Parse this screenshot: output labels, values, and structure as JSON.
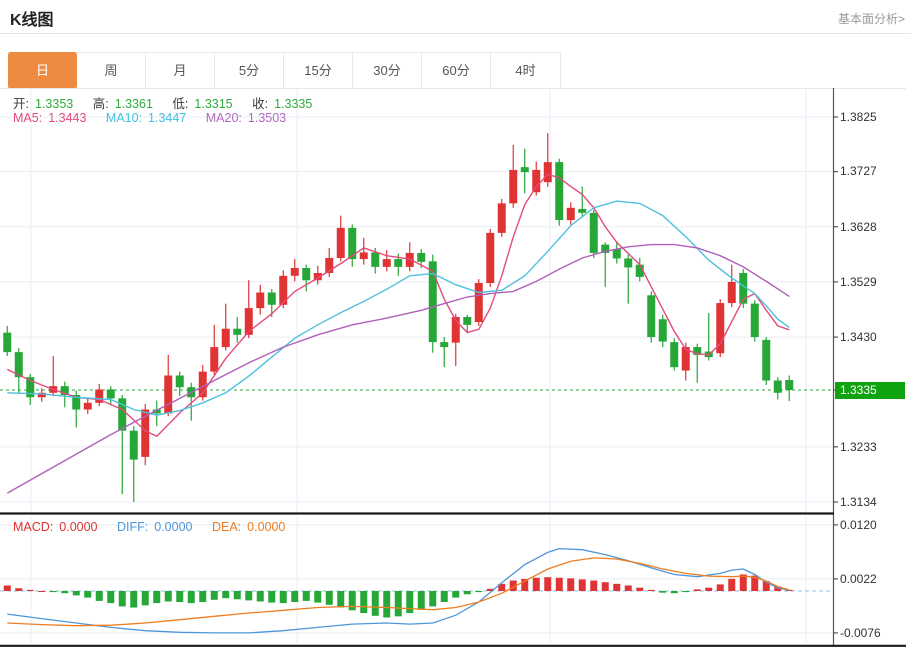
{
  "header": {
    "title": "K线图",
    "link": "基本面分析>"
  },
  "tabs": {
    "items": [
      {
        "label": "日",
        "active": true
      },
      {
        "label": "周",
        "active": false
      },
      {
        "label": "月",
        "active": false
      },
      {
        "label": "5分",
        "active": false
      },
      {
        "label": "15分",
        "active": false
      },
      {
        "label": "30分",
        "active": false
      },
      {
        "label": "60分",
        "active": false
      },
      {
        "label": "4时",
        "active": false
      }
    ]
  },
  "ohlc": {
    "items": [
      {
        "label": "开:",
        "value": "1.3353"
      },
      {
        "label": "高:",
        "value": "1.3361"
      },
      {
        "label": "低:",
        "value": "1.3315"
      },
      {
        "label": "收:",
        "value": "1.3335"
      }
    ]
  },
  "ma_legend": {
    "items": [
      {
        "label": "MA5:",
        "value": "1.3443"
      },
      {
        "label": "MA10:",
        "value": "1.3447"
      },
      {
        "label": "MA20:",
        "value": "1.3503"
      }
    ]
  },
  "macd_legend": {
    "items": [
      {
        "label": "MACD:",
        "value": "0.0000"
      },
      {
        "label": "DIFF:",
        "value": "0.0000"
      },
      {
        "label": "DEA:",
        "value": "0.0000"
      }
    ]
  },
  "price_tag": {
    "value": "1.3335"
  },
  "colors": {
    "up": "#e03333",
    "down": "#26a737",
    "ma5": "#e34b7c",
    "ma10": "#4fc0e0",
    "ma20": "#b060b8",
    "diff": "#4e97da",
    "dea": "#ef7d21",
    "tab_active": "#ef8b41",
    "price_tag": "#10a310",
    "grid": "#e7eef5",
    "axis": "#555",
    "current_line": "#2eaa3e",
    "zero_line": "#8fc1ea"
  },
  "chart_data": {
    "type": "candlestick+macd",
    "main": {
      "y_axis_labels": [
        "1.3825",
        "1.3727",
        "1.3628",
        "1.3529",
        "1.3430",
        "1.3233",
        "1.3134"
      ],
      "y_axis_values": [
        1.3825,
        1.3727,
        1.3628,
        1.3529,
        1.343,
        1.3233,
        1.3134
      ],
      "ylim": [
        1.311,
        1.388
      ],
      "current_price": 1.3335,
      "candles_ohlc": [
        [
          1.3438,
          1.345,
          1.3396,
          1.3403
        ],
        [
          1.3403,
          1.341,
          1.333,
          1.3358
        ],
        [
          1.3358,
          1.3364,
          1.3308,
          1.3322
        ],
        [
          1.3322,
          1.3338,
          1.3314,
          1.333
        ],
        [
          1.333,
          1.3396,
          1.3324,
          1.3342
        ],
        [
          1.3342,
          1.335,
          1.3304,
          1.3326
        ],
        [
          1.3326,
          1.3334,
          1.3268,
          1.33
        ],
        [
          1.33,
          1.332,
          1.3292,
          1.3312
        ],
        [
          1.3312,
          1.3346,
          1.3306,
          1.3336
        ],
        [
          1.3336,
          1.3342,
          1.3308,
          1.332
        ],
        [
          1.332,
          1.3326,
          1.3148,
          1.3262
        ],
        [
          1.3262,
          1.327,
          1.3134,
          1.321
        ],
        [
          1.3215,
          1.331,
          1.32,
          1.33
        ],
        [
          1.33,
          1.3316,
          1.327,
          1.3293
        ],
        [
          1.3293,
          1.3398,
          1.3288,
          1.3361
        ],
        [
          1.3361,
          1.3368,
          1.3324,
          1.334
        ],
        [
          1.334,
          1.3348,
          1.328,
          1.3322
        ],
        [
          1.3322,
          1.338,
          1.3316,
          1.3368
        ],
        [
          1.3368,
          1.3452,
          1.3362,
          1.3412
        ],
        [
          1.3412,
          1.349,
          1.3406,
          1.3445
        ],
        [
          1.3445,
          1.3466,
          1.342,
          1.3434
        ],
        [
          1.3434,
          1.3532,
          1.3428,
          1.3482
        ],
        [
          1.3482,
          1.3524,
          1.347,
          1.351
        ],
        [
          1.351,
          1.3516,
          1.3466,
          1.3488
        ],
        [
          1.3488,
          1.355,
          1.3482,
          1.354
        ],
        [
          1.354,
          1.357,
          1.353,
          1.3554
        ],
        [
          1.3554,
          1.356,
          1.3512,
          1.3532
        ],
        [
          1.3532,
          1.3558,
          1.3524,
          1.3545
        ],
        [
          1.3545,
          1.359,
          1.3538,
          1.3572
        ],
        [
          1.3572,
          1.3648,
          1.3566,
          1.3626
        ],
        [
          1.3626,
          1.3632,
          1.3556,
          1.357
        ],
        [
          1.357,
          1.3608,
          1.356,
          1.3582
        ],
        [
          1.3582,
          1.359,
          1.3544,
          1.3556
        ],
        [
          1.3556,
          1.3586,
          1.3548,
          1.357
        ],
        [
          1.357,
          1.358,
          1.354,
          1.3556
        ],
        [
          1.3556,
          1.36,
          1.3548,
          1.3581
        ],
        [
          1.3581,
          1.3588,
          1.3554,
          1.3565
        ],
        [
          1.3566,
          1.3578,
          1.3402,
          1.3421
        ],
        [
          1.3421,
          1.343,
          1.3376,
          1.3412
        ],
        [
          1.342,
          1.3472,
          1.3378,
          1.3466
        ],
        [
          1.3466,
          1.347,
          1.3438,
          1.3452
        ],
        [
          1.3457,
          1.3534,
          1.345,
          1.3527
        ],
        [
          1.3527,
          1.3624,
          1.352,
          1.3617
        ],
        [
          1.3617,
          1.3678,
          1.361,
          1.367
        ],
        [
          1.367,
          1.3775,
          1.3662,
          1.373
        ],
        [
          1.3735,
          1.3768,
          1.3688,
          1.3726
        ],
        [
          1.369,
          1.3745,
          1.3684,
          1.373
        ],
        [
          1.3708,
          1.3796,
          1.37,
          1.3744
        ],
        [
          1.3744,
          1.375,
          1.363,
          1.364
        ],
        [
          1.364,
          1.3672,
          1.3632,
          1.3662
        ],
        [
          1.366,
          1.37,
          1.3645,
          1.3653
        ],
        [
          1.3653,
          1.3658,
          1.3572,
          1.3581
        ],
        [
          1.3596,
          1.36,
          1.352,
          1.3581
        ],
        [
          1.3588,
          1.3602,
          1.3562,
          1.3571
        ],
        [
          1.3571,
          1.3578,
          1.349,
          1.3555
        ],
        [
          1.356,
          1.3572,
          1.353,
          1.3538
        ],
        [
          1.3505,
          1.3512,
          1.342,
          1.343
        ],
        [
          1.3462,
          1.347,
          1.3412,
          1.3422
        ],
        [
          1.3421,
          1.3428,
          1.337,
          1.3376
        ],
        [
          1.337,
          1.342,
          1.3352,
          1.3412
        ],
        [
          1.3412,
          1.3418,
          1.3348,
          1.3398
        ],
        [
          1.3404,
          1.3473,
          1.3388,
          1.3394
        ],
        [
          1.3401,
          1.3498,
          1.3394,
          1.3491
        ],
        [
          1.3491,
          1.356,
          1.3484,
          1.3529
        ],
        [
          1.3545,
          1.3552,
          1.3482,
          1.349
        ],
        [
          1.349,
          1.3496,
          1.3422,
          1.343
        ],
        [
          1.3425,
          1.343,
          1.3344,
          1.3352
        ],
        [
          1.3352,
          1.3358,
          1.3318,
          1.333
        ],
        [
          1.3353,
          1.3361,
          1.3315,
          1.3335
        ]
      ],
      "ma5_points": [
        [
          0,
          1.3372
        ],
        [
          2,
          1.3352
        ],
        [
          4,
          1.3336
        ],
        [
          6,
          1.3322
        ],
        [
          8,
          1.3318
        ],
        [
          10,
          1.33
        ],
        [
          12,
          1.3262
        ],
        [
          13,
          1.3252
        ],
        [
          15,
          1.3294
        ],
        [
          17,
          1.333
        ],
        [
          19,
          1.3392
        ],
        [
          21,
          1.344
        ],
        [
          23,
          1.3472
        ],
        [
          25,
          1.3512
        ],
        [
          27,
          1.3536
        ],
        [
          29,
          1.3562
        ],
        [
          31,
          1.359
        ],
        [
          33,
          1.3576
        ],
        [
          35,
          1.357
        ],
        [
          37,
          1.3548
        ],
        [
          38,
          1.3498
        ],
        [
          39,
          1.346
        ],
        [
          40,
          1.3438
        ],
        [
          41,
          1.3444
        ],
        [
          42,
          1.3482
        ],
        [
          43,
          1.354
        ],
        [
          44,
          1.361
        ],
        [
          45,
          1.3668
        ],
        [
          46,
          1.37
        ],
        [
          47,
          1.3722
        ],
        [
          48,
          1.3716
        ],
        [
          49,
          1.37
        ],
        [
          50,
          1.3686
        ],
        [
          51,
          1.3662
        ],
        [
          52,
          1.3628
        ],
        [
          53,
          1.36
        ],
        [
          54,
          1.358
        ],
        [
          55,
          1.356
        ],
        [
          56,
          1.352
        ],
        [
          57,
          1.348
        ],
        [
          58,
          1.344
        ],
        [
          59,
          1.3408
        ],
        [
          60,
          1.34
        ],
        [
          61,
          1.3398
        ],
        [
          62,
          1.3418
        ],
        [
          63,
          1.3458
        ],
        [
          64,
          1.3498
        ],
        [
          65,
          1.3508
        ],
        [
          66,
          1.3478
        ],
        [
          67,
          1.345
        ],
        [
          68,
          1.3443
        ]
      ],
      "ma10_points": [
        [
          0,
          1.333
        ],
        [
          3,
          1.3328
        ],
        [
          6,
          1.3322
        ],
        [
          9,
          1.3318
        ],
        [
          11,
          1.33
        ],
        [
          13,
          1.329
        ],
        [
          15,
          1.3298
        ],
        [
          17,
          1.3312
        ],
        [
          19,
          1.333
        ],
        [
          21,
          1.336
        ],
        [
          23,
          1.3394
        ],
        [
          25,
          1.3428
        ],
        [
          27,
          1.3452
        ],
        [
          29,
          1.3474
        ],
        [
          31,
          1.3494
        ],
        [
          33,
          1.3516
        ],
        [
          35,
          1.354
        ],
        [
          37,
          1.3544
        ],
        [
          39,
          1.3524
        ],
        [
          41,
          1.351
        ],
        [
          43,
          1.3514
        ],
        [
          45,
          1.354
        ],
        [
          47,
          1.3584
        ],
        [
          49,
          1.363
        ],
        [
          51,
          1.3662
        ],
        [
          53,
          1.3674
        ],
        [
          55,
          1.367
        ],
        [
          57,
          1.3648
        ],
        [
          59,
          1.361
        ],
        [
          61,
          1.3568
        ],
        [
          63,
          1.3536
        ],
        [
          65,
          1.3508
        ],
        [
          66,
          1.3486
        ],
        [
          67,
          1.3462
        ],
        [
          68,
          1.3447
        ]
      ],
      "ma20_points": [
        [
          0,
          1.315
        ],
        [
          3,
          1.3185
        ],
        [
          6,
          1.322
        ],
        [
          9,
          1.3255
        ],
        [
          12,
          1.3288
        ],
        [
          15,
          1.332
        ],
        [
          18,
          1.3352
        ],
        [
          21,
          1.3384
        ],
        [
          24,
          1.3412
        ],
        [
          27,
          1.3434
        ],
        [
          30,
          1.3452
        ],
        [
          33,
          1.3464
        ],
        [
          36,
          1.3478
        ],
        [
          38,
          1.349
        ],
        [
          40,
          1.3502
        ],
        [
          42,
          1.3508
        ],
        [
          44,
          1.3512
        ],
        [
          46,
          1.353
        ],
        [
          48,
          1.3552
        ],
        [
          50,
          1.3572
        ],
        [
          52,
          1.3584
        ],
        [
          54,
          1.3592
        ],
        [
          56,
          1.3596
        ],
        [
          58,
          1.3596
        ],
        [
          60,
          1.359
        ],
        [
          62,
          1.3576
        ],
        [
          64,
          1.3556
        ],
        [
          66,
          1.353
        ],
        [
          68,
          1.3503
        ]
      ]
    },
    "macd": {
      "y_axis_labels": [
        "0.0120",
        "0.0022",
        "-0.0076"
      ],
      "y_axis_values": [
        0.012,
        0.0022,
        -0.0076
      ],
      "zero_value": 0.0,
      "histogram": [
        0.001,
        0.0005,
        0.0002,
        0.0,
        -0.0002,
        -0.0004,
        -0.0008,
        -0.0012,
        -0.0018,
        -0.0022,
        -0.0028,
        -0.003,
        -0.0026,
        -0.0022,
        -0.0019,
        -0.002,
        -0.0022,
        -0.002,
        -0.0016,
        -0.0013,
        -0.0015,
        -0.0017,
        -0.0019,
        -0.0021,
        -0.0022,
        -0.002,
        -0.0018,
        -0.0021,
        -0.0025,
        -0.003,
        -0.0035,
        -0.004,
        -0.0045,
        -0.0048,
        -0.0046,
        -0.004,
        -0.0034,
        -0.0028,
        -0.002,
        -0.0012,
        -0.0006,
        -0.0002,
        0.0004,
        0.0013,
        0.0019,
        0.0022,
        0.0024,
        0.0025,
        0.0024,
        0.0023,
        0.0021,
        0.0019,
        0.0016,
        0.0013,
        0.001,
        0.0006,
        0.0002,
        -0.0003,
        -0.0004,
        -0.0002,
        0.0003,
        0.0006,
        0.0012,
        0.0022,
        0.003,
        0.0028,
        0.0018,
        0.0008,
        0.0002
      ],
      "diff_points": [
        [
          0,
          -0.0042
        ],
        [
          3,
          -0.005
        ],
        [
          6,
          -0.0058
        ],
        [
          9,
          -0.0066
        ],
        [
          12,
          -0.0072
        ],
        [
          15,
          -0.0075
        ],
        [
          18,
          -0.0076
        ],
        [
          21,
          -0.0076
        ],
        [
          24,
          -0.0072
        ],
        [
          27,
          -0.0066
        ],
        [
          30,
          -0.006
        ],
        [
          33,
          -0.0058
        ],
        [
          35,
          -0.006
        ],
        [
          37,
          -0.0058
        ],
        [
          39,
          -0.0044
        ],
        [
          41,
          -0.002
        ],
        [
          43,
          0.0015
        ],
        [
          45,
          0.0048
        ],
        [
          47,
          0.007
        ],
        [
          48,
          0.0077
        ],
        [
          50,
          0.0075
        ],
        [
          52,
          0.0066
        ],
        [
          54,
          0.0055
        ],
        [
          56,
          0.0042
        ],
        [
          58,
          0.003
        ],
        [
          60,
          0.0026
        ],
        [
          62,
          0.0032
        ],
        [
          63,
          0.0038
        ],
        [
          64,
          0.004
        ],
        [
          65,
          0.003
        ],
        [
          66,
          0.0016
        ],
        [
          67,
          0.0006
        ],
        [
          68,
          0.0001
        ]
      ],
      "dea_points": [
        [
          0,
          -0.0058
        ],
        [
          3,
          -0.0061
        ],
        [
          6,
          -0.0063
        ],
        [
          9,
          -0.0062
        ],
        [
          12,
          -0.0058
        ],
        [
          15,
          -0.0052
        ],
        [
          18,
          -0.0046
        ],
        [
          21,
          -0.004
        ],
        [
          24,
          -0.0035
        ],
        [
          27,
          -0.003
        ],
        [
          30,
          -0.0028
        ],
        [
          33,
          -0.003
        ],
        [
          35,
          -0.0032
        ],
        [
          37,
          -0.0034
        ],
        [
          39,
          -0.003
        ],
        [
          41,
          -0.002
        ],
        [
          43,
          -0.0004
        ],
        [
          45,
          0.0018
        ],
        [
          47,
          0.004
        ],
        [
          49,
          0.0054
        ],
        [
          51,
          0.006
        ],
        [
          53,
          0.0058
        ],
        [
          55,
          0.005
        ],
        [
          57,
          0.004
        ],
        [
          59,
          0.0032
        ],
        [
          61,
          0.0027
        ],
        [
          63,
          0.0026
        ],
        [
          64,
          0.0027
        ],
        [
          65,
          0.0025
        ],
        [
          66,
          0.0018
        ],
        [
          67,
          0.0008
        ],
        [
          68,
          0.0002
        ]
      ]
    }
  }
}
